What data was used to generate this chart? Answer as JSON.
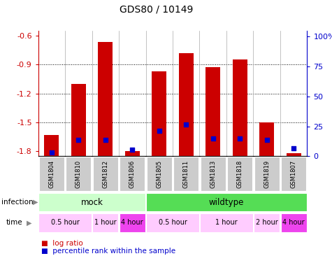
{
  "title": "GDS80 / 10149",
  "samples": [
    "GSM1804",
    "GSM1810",
    "GSM1812",
    "GSM1806",
    "GSM1805",
    "GSM1811",
    "GSM1813",
    "GSM1818",
    "GSM1819",
    "GSM1807"
  ],
  "log_ratios": [
    -1.63,
    -1.1,
    -0.67,
    -1.8,
    -0.97,
    -0.78,
    -0.93,
    -0.85,
    -1.5,
    -1.82
  ],
  "percentile_ranks": [
    3,
    13,
    13,
    5,
    20,
    25,
    14,
    14,
    13,
    6
  ],
  "ylim_left": [
    -1.85,
    -0.55
  ],
  "ylim_right": [
    0,
    105
  ],
  "left_ticks": [
    -1.8,
    -1.5,
    -1.2,
    -0.9,
    -0.6
  ],
  "right_ticks": [
    0,
    25,
    50,
    75,
    100
  ],
  "grid_lines": [
    -0.9,
    -1.2,
    -1.5
  ],
  "bar_color": "#cc0000",
  "percentile_color": "#0000cc",
  "bar_width": 0.55,
  "infection_groups": [
    {
      "label": "mock",
      "start": 0,
      "end": 4,
      "color": "#ccffcc"
    },
    {
      "label": "wildtype",
      "start": 4,
      "end": 10,
      "color": "#55dd55"
    }
  ],
  "time_groups": [
    {
      "label": "0.5 hour",
      "start": 0,
      "end": 2,
      "color": "#ffccff"
    },
    {
      "label": "1 hour",
      "start": 2,
      "end": 3,
      "color": "#ffccff"
    },
    {
      "label": "4 hour",
      "start": 3,
      "end": 4,
      "color": "#ee44ee"
    },
    {
      "label": "0.5 hour",
      "start": 4,
      "end": 6,
      "color": "#ffccff"
    },
    {
      "label": "1 hour",
      "start": 6,
      "end": 8,
      "color": "#ffccff"
    },
    {
      "label": "2 hour",
      "start": 8,
      "end": 9,
      "color": "#ffccff"
    },
    {
      "label": "4 hour",
      "start": 9,
      "end": 10,
      "color": "#ee44ee"
    }
  ],
  "sample_box_color": "#cccccc",
  "left_label_color": "#cc0000",
  "right_label_color": "#0000cc",
  "legend_items": [
    {
      "label": "log ratio",
      "color": "#cc0000"
    },
    {
      "label": "percentile rank within the sample",
      "color": "#0000cc"
    }
  ]
}
